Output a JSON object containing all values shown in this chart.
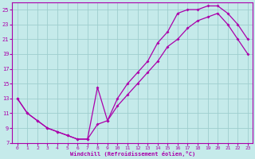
{
  "xlabel": "Windchill (Refroidissement éolien,°C)",
  "bg_color": "#c5eaea",
  "grid_color": "#9ecece",
  "line_color": "#aa00aa",
  "xlim": [
    -0.5,
    23.5
  ],
  "ylim": [
    7,
    26
  ],
  "xticks": [
    0,
    1,
    2,
    3,
    4,
    5,
    6,
    7,
    8,
    9,
    10,
    11,
    12,
    13,
    14,
    15,
    16,
    17,
    18,
    19,
    20,
    21,
    22,
    23
  ],
  "yticks": [
    7,
    9,
    11,
    13,
    15,
    17,
    19,
    21,
    23,
    25
  ],
  "curve1_x": [
    0,
    1,
    2,
    3,
    4,
    5,
    6,
    7,
    8,
    9,
    10,
    11,
    12,
    13,
    14,
    15,
    16,
    17,
    18,
    19,
    20,
    21,
    22,
    23
  ],
  "curve1_y": [
    13,
    11,
    10,
    9,
    8.5,
    8,
    7.5,
    7.5,
    14.5,
    10,
    13,
    15,
    16.5,
    18,
    20.5,
    22,
    24.5,
    25,
    25,
    25.5,
    25.5,
    24.5,
    23,
    21
  ],
  "curve2_x": [
    0,
    1,
    2,
    3,
    4,
    5,
    6,
    7,
    8,
    9,
    10,
    11,
    12,
    13,
    14,
    15,
    16,
    17,
    18,
    19,
    20,
    21,
    22,
    23
  ],
  "curve2_y": [
    13,
    11,
    10,
    9,
    8.5,
    8,
    7.5,
    7.5,
    9.5,
    10,
    12,
    13.5,
    15,
    16.5,
    18,
    20,
    21,
    22.5,
    23.5,
    24,
    24.5,
    23,
    21,
    19
  ]
}
